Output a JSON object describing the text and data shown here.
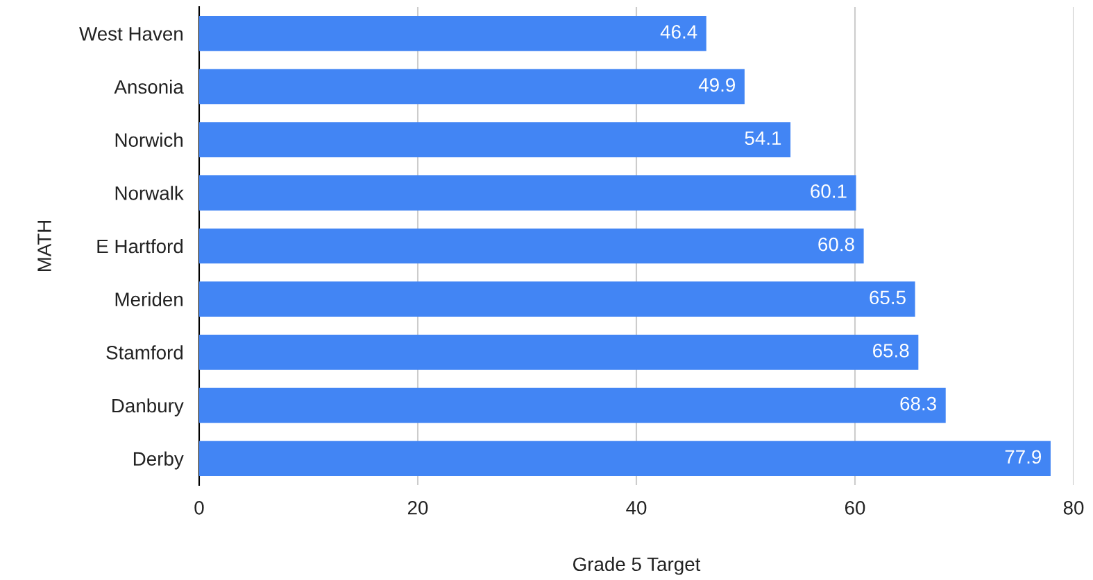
{
  "chart_data": {
    "type": "bar",
    "orientation": "horizontal",
    "xlabel": "Grade 5 Target",
    "ylabel": "MATH",
    "categories": [
      "West Haven",
      "Ansonia",
      "Norwich",
      "Norwalk",
      "E Hartford",
      "Meriden",
      "Stamford",
      "Danbury",
      "Derby"
    ],
    "values": [
      46.4,
      49.9,
      54.1,
      60.1,
      60.8,
      65.5,
      65.8,
      68.3,
      77.9
    ],
    "color": "#4285f4",
    "xlim": [
      0,
      80
    ],
    "xticks": [
      0,
      20,
      40,
      60,
      80
    ],
    "grid": "x",
    "data_labels": true
  }
}
